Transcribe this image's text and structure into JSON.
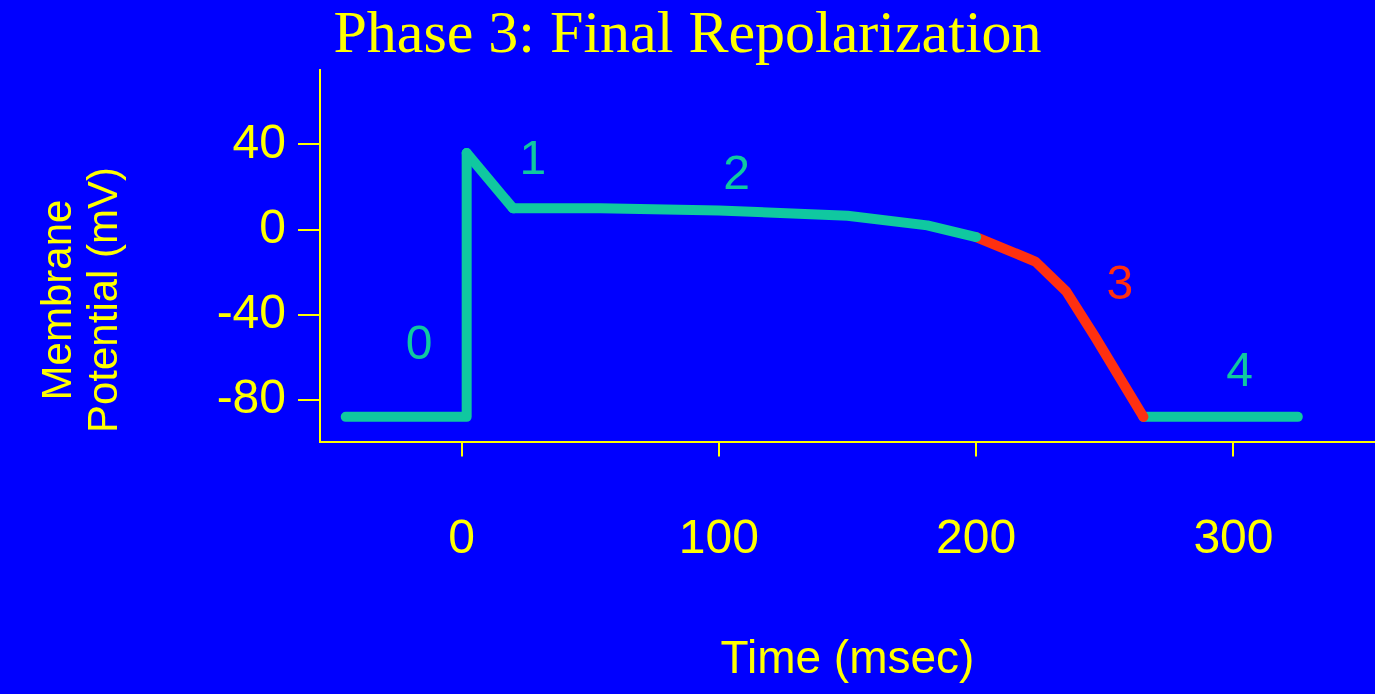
{
  "chart_data": {
    "type": "line",
    "title": "Phase 3: Final Repolarization",
    "xlabel": "Time (msec)",
    "ylabel": "Membrane Potential (mV)",
    "xlim": [
      -55,
      355
    ],
    "xticks": [
      0,
      100,
      200,
      300
    ],
    "ylim": [
      -100,
      75
    ],
    "yticks": [
      -80,
      -40,
      0,
      40
    ],
    "grid": false,
    "legend": false,
    "marker": "none",
    "line_style": "solid",
    "series": [
      {
        "name": "0",
        "color": "#10c8a0",
        "x": [
          -45,
          2,
          2
        ],
        "values": [
          -88,
          -88,
          36
        ]
      },
      {
        "name": "1",
        "color": "#10c8a0",
        "x": [
          2,
          20
        ],
        "values": [
          36,
          10
        ]
      },
      {
        "name": "2",
        "color": "#10c8a0",
        "x": [
          20,
          54,
          100,
          150,
          181,
          200
        ],
        "values": [
          10,
          10,
          9,
          6.5,
          2,
          -3.5
        ]
      },
      {
        "name": "3",
        "color": "#ff3010",
        "x": [
          200,
          223,
          235,
          246,
          265
        ],
        "values": [
          -3.5,
          -15,
          -29,
          -50,
          -88
        ]
      },
      {
        "name": "4",
        "color": "#10c8a0",
        "x": [
          265,
          325
        ],
        "values": [
          -88,
          -88
        ]
      }
    ]
  }
}
